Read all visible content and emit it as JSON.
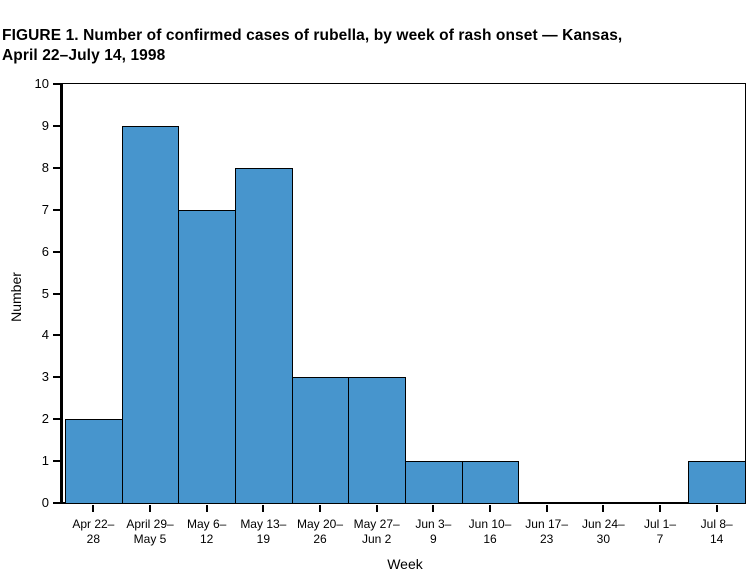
{
  "figure": {
    "title_full": "FIGURE 1. Number of confirmed cases of rubella, by week of rash onset — Kansas, April 22–July 14, 1998"
  },
  "chart_data": {
    "type": "bar",
    "title": "FIGURE 1. Number of confirmed cases of rubella, by week of rash onset — Kansas, April 22–July 14, 1998",
    "title_lines": [
      "FIGURE 1. Number of confirmed cases of rubella, by week of rash onset — Kansas,",
      "April 22–July 14, 1998"
    ],
    "xlabel": "Week",
    "ylabel": "Number",
    "ylim": [
      0,
      10
    ],
    "y_ticks": [
      0,
      1,
      2,
      3,
      4,
      5,
      6,
      7,
      8,
      9,
      10
    ],
    "categories": [
      "Apr 22–28",
      "April 29–May 5",
      "May 6–12",
      "May 13–19",
      "May 20–26",
      "May 27–Jun 2",
      "Jun 3–9",
      "Jun 10–16",
      "Jun 17–23",
      "Jun 24–30",
      "Jul 1–7",
      "Jul 8–14"
    ],
    "tick_label_lines": [
      [
        "Apr 22–",
        "28"
      ],
      [
        "April 29–",
        "May 5"
      ],
      [
        "May 6–",
        "12"
      ],
      [
        "May 13–",
        "19"
      ],
      [
        "May 20–",
        "26"
      ],
      [
        "May 27–",
        "Jun 2"
      ],
      [
        "Jun 3–",
        "9"
      ],
      [
        "Jun 10–",
        "16"
      ],
      [
        "Jun 17–",
        "23"
      ],
      [
        "Jun 24–",
        "30"
      ],
      [
        "Jul 1–",
        "7"
      ],
      [
        "Jul 8–",
        "14"
      ]
    ],
    "values": [
      2,
      9,
      7,
      8,
      3,
      3,
      1,
      1,
      0,
      0,
      0,
      1
    ],
    "grid": false,
    "legend": false,
    "colors": {
      "bar_fill": "#4795CD",
      "bar_border": "#000000",
      "axis": "#000000",
      "text": "#000000",
      "background": "#FFFFFF"
    }
  }
}
